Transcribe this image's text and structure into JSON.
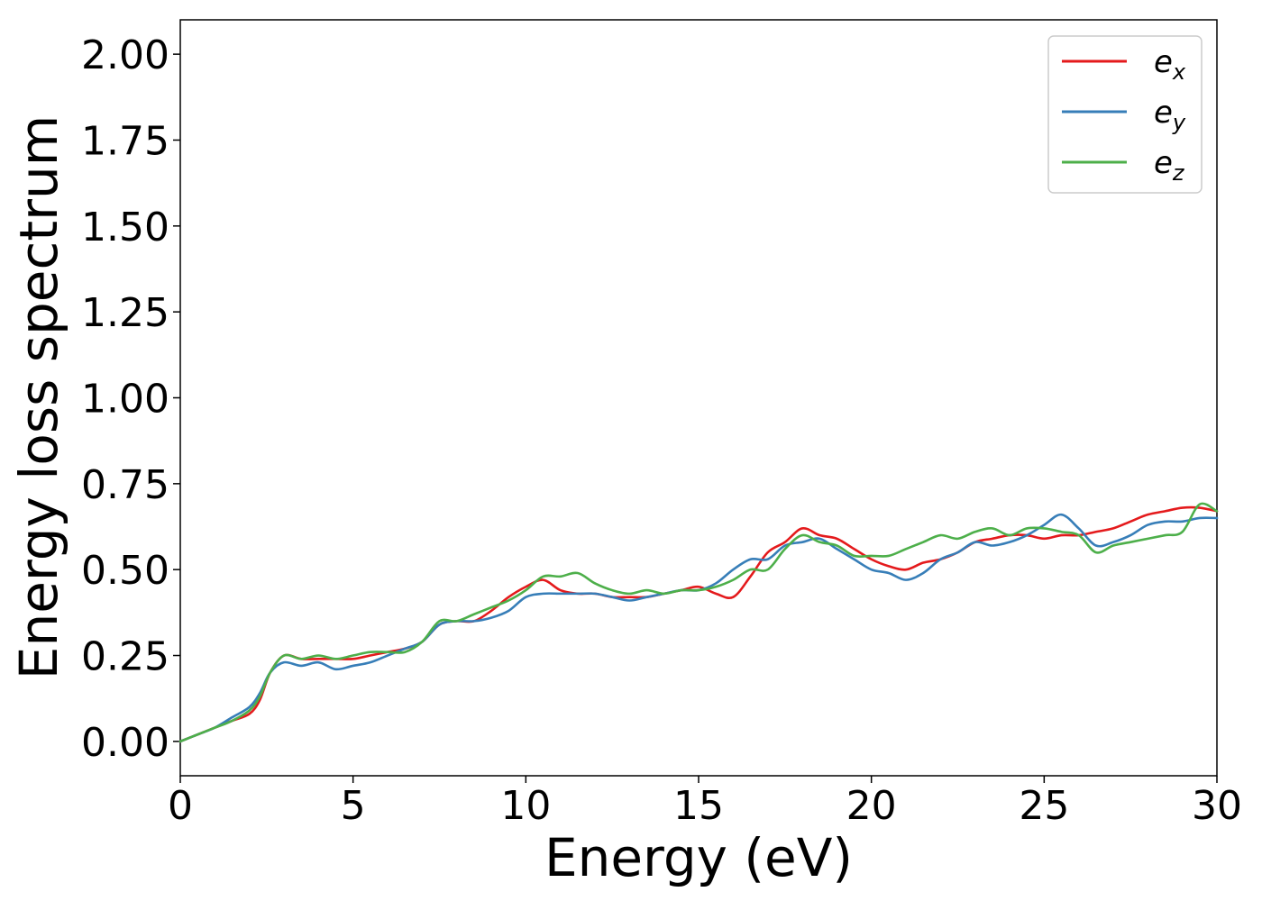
{
  "chart_data": {
    "type": "line",
    "xlabel": "Energy (eV)",
    "ylabel": "Energy loss spectrum",
    "xlim": [
      0,
      30
    ],
    "ylim": [
      -0.1,
      2.1
    ],
    "xticks": [
      0,
      5,
      10,
      15,
      20,
      25,
      30
    ],
    "xtick_labels": [
      "0",
      "5",
      "10",
      "15",
      "20",
      "25",
      "30"
    ],
    "yticks": [
      0,
      0.25,
      0.5,
      0.75,
      1.0,
      1.25,
      1.5,
      1.75,
      2.0
    ],
    "ytick_labels": [
      "0.00",
      "0.25",
      "0.50",
      "0.75",
      "1.00",
      "1.25",
      "1.50",
      "1.75",
      "2.00"
    ],
    "grid": false,
    "legend_position": "top-right",
    "series": [
      {
        "name_base": "e",
        "name_sub": "x",
        "color": "#e41a1c",
        "x": [
          0,
          0.5,
          1,
          1.5,
          2,
          2.3,
          2.6,
          3,
          3.5,
          4,
          4.5,
          5,
          5.5,
          6,
          6.5,
          7,
          7.5,
          8,
          8.5,
          9,
          9.5,
          10,
          10.5,
          11,
          11.5,
          12,
          12.5,
          13,
          13.5,
          14,
          14.5,
          15,
          15.5,
          16,
          16.5,
          17,
          17.5,
          18,
          18.5,
          19,
          19.5,
          20,
          20.5,
          21,
          21.5,
          22,
          22.5,
          23,
          23.5,
          24,
          24.5,
          25,
          25.5,
          26,
          26.5,
          27,
          27.5,
          28,
          28.5,
          29,
          29.5,
          30
        ],
        "y": [
          0.0,
          0.02,
          0.04,
          0.06,
          0.08,
          0.12,
          0.2,
          0.25,
          0.24,
          0.24,
          0.24,
          0.24,
          0.25,
          0.26,
          0.27,
          0.29,
          0.34,
          0.35,
          0.35,
          0.38,
          0.42,
          0.45,
          0.47,
          0.44,
          0.43,
          0.43,
          0.42,
          0.42,
          0.42,
          0.43,
          0.44,
          0.45,
          0.43,
          0.42,
          0.48,
          0.55,
          0.58,
          0.62,
          0.6,
          0.59,
          0.56,
          0.53,
          0.51,
          0.5,
          0.52,
          0.53,
          0.55,
          0.58,
          0.59,
          0.6,
          0.6,
          0.59,
          0.6,
          0.6,
          0.61,
          0.62,
          0.64,
          0.66,
          0.67,
          0.68,
          0.68,
          0.67
        ]
      },
      {
        "name_base": "e",
        "name_sub": "y",
        "color": "#377eb8",
        "x": [
          0,
          0.5,
          1,
          1.5,
          2,
          2.3,
          2.6,
          3,
          3.5,
          4,
          4.5,
          5,
          5.5,
          6,
          6.5,
          7,
          7.5,
          8,
          8.5,
          9,
          9.5,
          10,
          10.5,
          11,
          11.5,
          12,
          12.5,
          13,
          13.5,
          14,
          14.5,
          15,
          15.5,
          16,
          16.5,
          17,
          17.5,
          18,
          18.5,
          19,
          19.5,
          20,
          20.5,
          21,
          21.5,
          22,
          22.5,
          23,
          23.5,
          24,
          24.5,
          25,
          25.5,
          26,
          26.5,
          27,
          27.5,
          28,
          28.5,
          29,
          29.5,
          30
        ],
        "y": [
          0.0,
          0.02,
          0.04,
          0.07,
          0.1,
          0.14,
          0.2,
          0.23,
          0.22,
          0.23,
          0.21,
          0.22,
          0.23,
          0.25,
          0.27,
          0.29,
          0.34,
          0.35,
          0.35,
          0.36,
          0.38,
          0.42,
          0.43,
          0.43,
          0.43,
          0.43,
          0.42,
          0.41,
          0.42,
          0.43,
          0.44,
          0.44,
          0.46,
          0.5,
          0.53,
          0.53,
          0.57,
          0.58,
          0.59,
          0.56,
          0.53,
          0.5,
          0.49,
          0.47,
          0.49,
          0.53,
          0.55,
          0.58,
          0.57,
          0.58,
          0.6,
          0.63,
          0.66,
          0.62,
          0.57,
          0.58,
          0.6,
          0.63,
          0.64,
          0.64,
          0.65,
          0.65
        ]
      },
      {
        "name_base": "e",
        "name_sub": "z",
        "color": "#4daf4a",
        "x": [
          0,
          0.5,
          1,
          1.5,
          2,
          2.3,
          2.6,
          3,
          3.5,
          4,
          4.5,
          5,
          5.5,
          6,
          6.5,
          7,
          7.5,
          8,
          8.5,
          9,
          9.5,
          10,
          10.5,
          11,
          11.5,
          12,
          12.5,
          13,
          13.5,
          14,
          14.5,
          15,
          15.5,
          16,
          16.5,
          17,
          17.5,
          18,
          18.5,
          19,
          19.5,
          20,
          20.5,
          21,
          21.5,
          22,
          22.5,
          23,
          23.5,
          24,
          24.5,
          25,
          25.5,
          26,
          26.5,
          27,
          27.5,
          28,
          28.5,
          29,
          29.5,
          30
        ],
        "y": [
          0.0,
          0.02,
          0.04,
          0.06,
          0.09,
          0.13,
          0.2,
          0.25,
          0.24,
          0.25,
          0.24,
          0.25,
          0.26,
          0.26,
          0.26,
          0.29,
          0.35,
          0.35,
          0.37,
          0.39,
          0.41,
          0.44,
          0.48,
          0.48,
          0.49,
          0.46,
          0.44,
          0.43,
          0.44,
          0.43,
          0.44,
          0.44,
          0.45,
          0.47,
          0.5,
          0.5,
          0.56,
          0.6,
          0.58,
          0.57,
          0.54,
          0.54,
          0.54,
          0.56,
          0.58,
          0.6,
          0.59,
          0.61,
          0.62,
          0.6,
          0.62,
          0.62,
          0.61,
          0.6,
          0.55,
          0.57,
          0.58,
          0.59,
          0.6,
          0.61,
          0.69,
          0.67
        ]
      }
    ]
  }
}
